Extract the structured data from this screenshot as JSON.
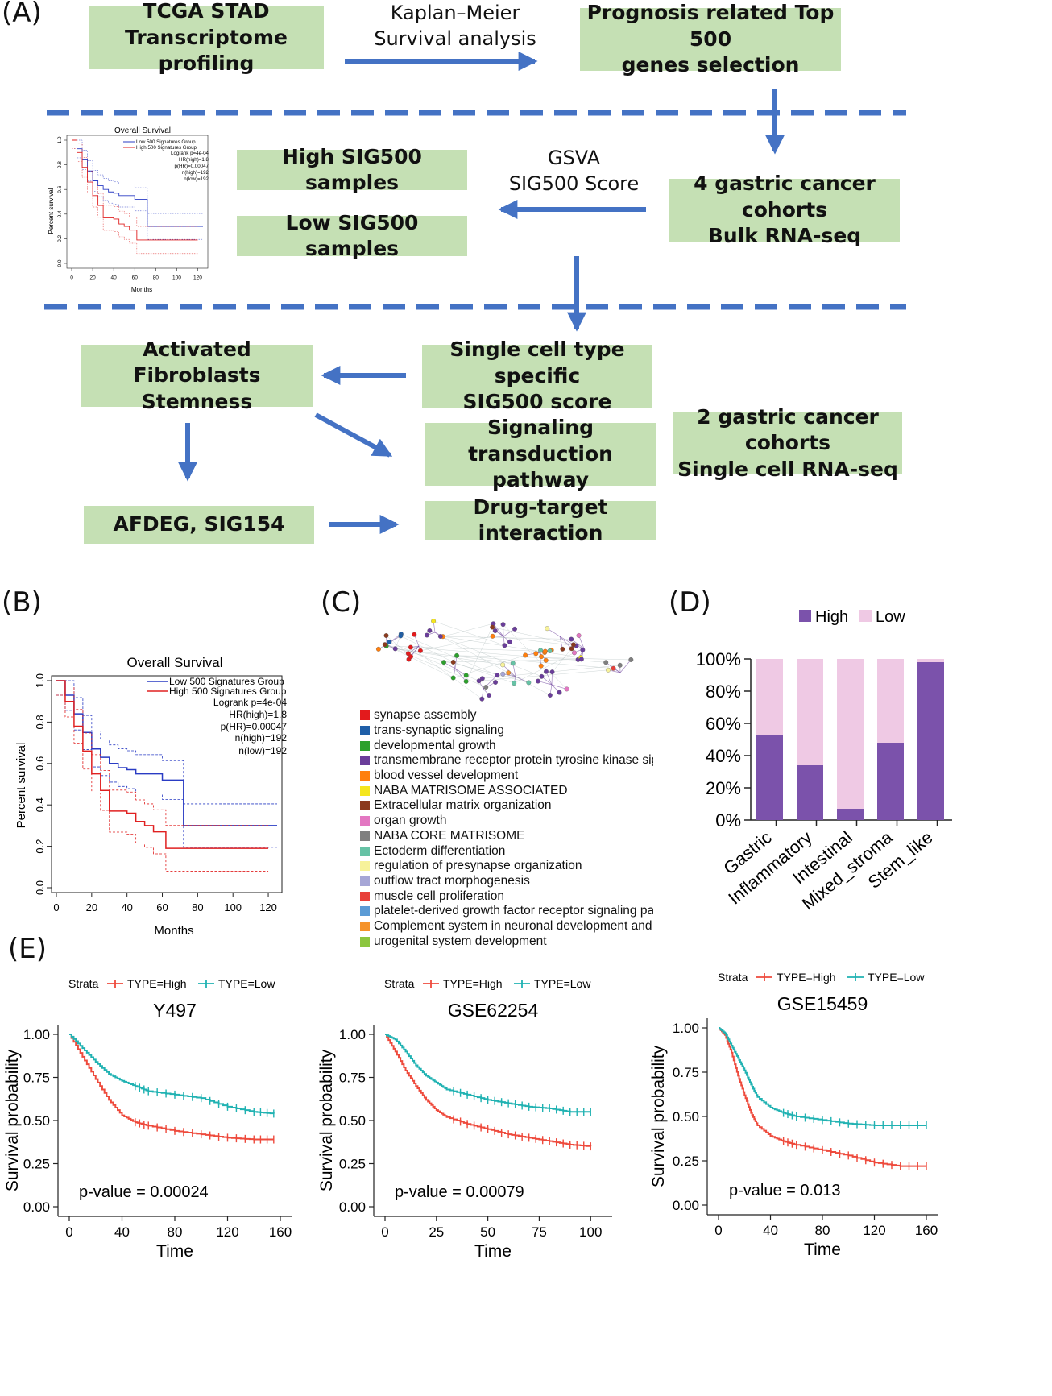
{
  "panels": {
    "A": "(A)",
    "B": "(B)",
    "C": "(C)",
    "D": "(D)",
    "E": "(E)"
  },
  "flow": {
    "boxes": [
      {
        "id": "tcga",
        "text": "TCGA STAD\nTranscriptome profiling"
      },
      {
        "id": "top500",
        "text": "Prognosis related Top 500\ngenes selection"
      },
      {
        "id": "high",
        "text": "High SIG500 samples"
      },
      {
        "id": "low",
        "text": "Low SIG500 samples"
      },
      {
        "id": "bulk",
        "text": "4 gastric cancer cohorts\nBulk RNA-seq"
      },
      {
        "id": "fibro",
        "text": "Activated Fibroblasts\nStemness"
      },
      {
        "id": "single",
        "text": "Single cell type specific\nSIG500 score"
      },
      {
        "id": "signal",
        "text": "Signaling transduction\npathway"
      },
      {
        "id": "sc2",
        "text": "2 gastric cancer cohorts\nSingle cell RNA-seq"
      },
      {
        "id": "afdeg",
        "text": "AFDEG, SIG154"
      },
      {
        "id": "drug",
        "text": "Drug-target interaction"
      }
    ],
    "arrow_labels": {
      "km": "Kaplan–Meier\nSurvival analysis",
      "gsva": "GSVA\nSIG500 Score"
    },
    "colors": {
      "box": "#c5e0b4",
      "arrow": "#4472c4",
      "dash": "#4472c4"
    }
  },
  "km_b": {
    "title": "Overall Survival",
    "xlabel": "Months",
    "ylabel": "Percent survival",
    "xticks": [
      "0",
      "20",
      "40",
      "60",
      "80",
      "100",
      "120"
    ],
    "yticks": [
      "0.0",
      "0.2",
      "0.4",
      "0.6",
      "0.8",
      "1.0"
    ],
    "legend": [
      "Low 500 Signatures Group",
      "High 500 Signatures Group"
    ],
    "stats": [
      "Logrank p=4e-04",
      "HR(high)=1.8",
      "p(HR)=0.00047",
      "n(high)=192",
      "n(low)=192"
    ]
  },
  "inset_a": {
    "title": "Overall Survival",
    "xlabel": "Months",
    "ylabel": "Percent survival",
    "xticks": [
      "0",
      "20",
      "40",
      "60",
      "80",
      "100",
      "120"
    ],
    "yticks": [
      "0.0",
      "0.2",
      "0.4",
      "0.6",
      "0.8",
      "1.0"
    ],
    "legend": [
      "Low 500 Signatures Group",
      "High 500 Signatures Group"
    ],
    "stats": [
      "Logrank p=4e-04",
      "HR(high)=1.8",
      "p(HR)=0.00047",
      "n(high)=192",
      "n(low)=192"
    ]
  },
  "network_c": {
    "legend": [
      {
        "label": "synapse assembly",
        "color": "#e31a1c"
      },
      {
        "label": "trans-synaptic signaling",
        "color": "#1f5fa8"
      },
      {
        "label": "developmental growth",
        "color": "#2ca02c"
      },
      {
        "label": "transmembrane receptor protein tyrosine kinase signa",
        "color": "#6a3d9a"
      },
      {
        "label": "blood vessel development",
        "color": "#ff7f0e"
      },
      {
        "label": "NABA MATRISOME ASSOCIATED",
        "color": "#f5e61e"
      },
      {
        "label": "Extracellular matrix organization",
        "color": "#8b3a1e"
      },
      {
        "label": "organ growth",
        "color": "#e377c2"
      },
      {
        "label": "NABA CORE MATRISOME",
        "color": "#7f7f7f"
      },
      {
        "label": "Ectoderm differentiation",
        "color": "#66c2a5"
      },
      {
        "label": "regulation of presynapse organization",
        "color": "#f7f29a"
      },
      {
        "label": "outflow tract morphogenesis",
        "color": "#a6a6d6"
      },
      {
        "label": "muscle cell proliferation",
        "color": "#e8403a"
      },
      {
        "label": "platelet-derived growth factor receptor signaling path",
        "color": "#5b9bd5"
      },
      {
        "label": "Complement system in neuronal development and pl",
        "color": "#f5932a"
      },
      {
        "label": "urogenital system development",
        "color": "#8cc63f"
      }
    ]
  },
  "chart_data": [
    {
      "type": "line",
      "title": "Overall Survival",
      "xlabel": "Months",
      "ylabel": "Percent survival",
      "xlim": [
        0,
        125
      ],
      "ylim": [
        0,
        1
      ],
      "series": [
        {
          "name": "Low 500 Signatures Group",
          "color": "#2a3cc4",
          "x": [
            0,
            5,
            10,
            15,
            20,
            25,
            30,
            35,
            40,
            45,
            50,
            55,
            60,
            65,
            70,
            72,
            75,
            80,
            100,
            125
          ],
          "y": [
            1.0,
            0.93,
            0.84,
            0.75,
            0.67,
            0.63,
            0.6,
            0.58,
            0.57,
            0.55,
            0.55,
            0.55,
            0.52,
            0.52,
            0.52,
            0.3,
            0.3,
            0.3,
            0.3,
            0.3
          ]
        },
        {
          "name": "High 500 Signatures Group",
          "color": "#e02020",
          "x": [
            0,
            5,
            10,
            15,
            20,
            25,
            30,
            35,
            40,
            45,
            50,
            55,
            60,
            62,
            80,
            100,
            120
          ],
          "y": [
            1.0,
            0.9,
            0.78,
            0.66,
            0.55,
            0.47,
            0.37,
            0.37,
            0.36,
            0.32,
            0.3,
            0.27,
            0.27,
            0.19,
            0.19,
            0.19,
            0.19
          ]
        }
      ]
    },
    {
      "type": "bar",
      "stacked": true,
      "categories": [
        "Gastric",
        "Inflammatory",
        "Intestinal",
        "Mixed_stroma",
        "Stem_like"
      ],
      "yticks": [
        "0%",
        "20%",
        "40%",
        "60%",
        "80%",
        "100%"
      ],
      "ylim": [
        0,
        100
      ],
      "series": [
        {
          "name": "High",
          "color": "#7b52ab",
          "values": [
            53,
            34,
            7,
            48,
            98
          ]
        },
        {
          "name": "Low",
          "color": "#efc9e4",
          "values": [
            47,
            66,
            93,
            52,
            2
          ]
        }
      ],
      "legend_position": "top"
    },
    {
      "type": "line",
      "title": "Y497",
      "legend_title": "Strata",
      "xlabel": "Time",
      "ylabel": "Survival probability",
      "annotation": "p-value = 0.00024",
      "xlim": [
        0,
        160
      ],
      "xticks": [
        "0",
        "40",
        "80",
        "120",
        "160"
      ],
      "yticks": [
        "0.00",
        "0.25",
        "0.50",
        "0.75",
        "1.00"
      ],
      "series": [
        {
          "name": "TYPE=High",
          "color": "#ee4a3c",
          "x": [
            0,
            10,
            20,
            30,
            40,
            50,
            60,
            80,
            100,
            120,
            140,
            155
          ],
          "y": [
            1.0,
            0.87,
            0.74,
            0.62,
            0.53,
            0.49,
            0.47,
            0.44,
            0.42,
            0.4,
            0.39,
            0.39
          ]
        },
        {
          "name": "TYPE=Low",
          "color": "#20b2b2",
          "x": [
            0,
            10,
            20,
            30,
            40,
            50,
            60,
            80,
            100,
            120,
            140,
            155
          ],
          "y": [
            1.0,
            0.92,
            0.84,
            0.77,
            0.73,
            0.7,
            0.67,
            0.65,
            0.63,
            0.58,
            0.55,
            0.54
          ]
        }
      ]
    },
    {
      "type": "line",
      "title": "GSE62254",
      "legend_title": "Strata",
      "xlabel": "Time",
      "ylabel": "Survival probability",
      "annotation": "p-value = 0.00079",
      "xlim": [
        0,
        105
      ],
      "xticks": [
        "0",
        "25",
        "50",
        "75",
        "100"
      ],
      "yticks": [
        "0.00",
        "0.25",
        "0.50",
        "0.75",
        "1.00"
      ],
      "series": [
        {
          "name": "TYPE=High",
          "color": "#ee4a3c",
          "x": [
            0,
            5,
            10,
            15,
            20,
            25,
            30,
            40,
            50,
            60,
            70,
            80,
            90,
            100
          ],
          "y": [
            1.0,
            0.9,
            0.79,
            0.7,
            0.62,
            0.56,
            0.52,
            0.48,
            0.45,
            0.42,
            0.4,
            0.38,
            0.36,
            0.35
          ]
        },
        {
          "name": "TYPE=Low",
          "color": "#20b2b2",
          "x": [
            0,
            5,
            10,
            15,
            20,
            25,
            30,
            40,
            50,
            60,
            70,
            80,
            90,
            100
          ],
          "y": [
            1.0,
            0.97,
            0.9,
            0.82,
            0.76,
            0.72,
            0.68,
            0.65,
            0.62,
            0.6,
            0.58,
            0.57,
            0.55,
            0.55
          ]
        }
      ]
    },
    {
      "type": "line",
      "title": "GSE15459",
      "legend_title": "Strata",
      "xlabel": "Time",
      "ylabel": "Survival probability",
      "annotation": "p-value = 0.013",
      "xlim": [
        0,
        160
      ],
      "xticks": [
        "0",
        "40",
        "80",
        "120",
        "160"
      ],
      "yticks": [
        "0.00",
        "0.25",
        "0.50",
        "0.75",
        "1.00"
      ],
      "series": [
        {
          "name": "TYPE=High",
          "color": "#ee4a3c",
          "x": [
            0,
            5,
            10,
            15,
            20,
            25,
            30,
            40,
            50,
            60,
            80,
            100,
            120,
            140,
            160
          ],
          "y": [
            1.0,
            0.96,
            0.86,
            0.73,
            0.62,
            0.52,
            0.45,
            0.39,
            0.36,
            0.34,
            0.31,
            0.28,
            0.24,
            0.22,
            0.22
          ]
        },
        {
          "name": "TYPE=Low",
          "color": "#20b2b2",
          "x": [
            0,
            5,
            10,
            15,
            20,
            25,
            30,
            40,
            50,
            60,
            80,
            100,
            120,
            140,
            160
          ],
          "y": [
            1.0,
            0.97,
            0.9,
            0.83,
            0.76,
            0.68,
            0.61,
            0.55,
            0.52,
            0.5,
            0.48,
            0.46,
            0.45,
            0.45,
            0.45
          ]
        }
      ]
    }
  ]
}
